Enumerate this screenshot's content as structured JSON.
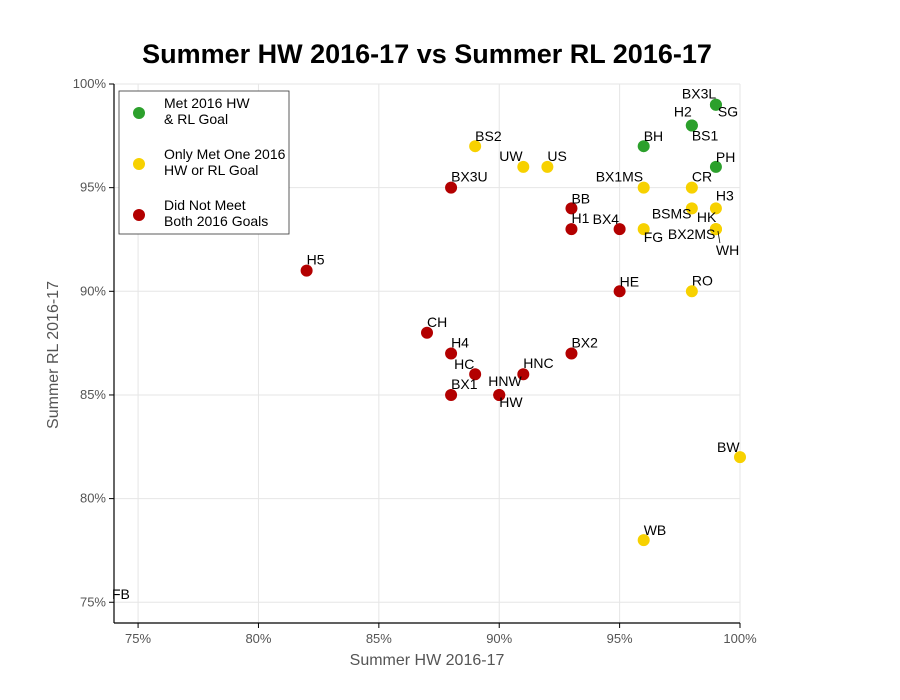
{
  "chart_data": {
    "type": "scatter",
    "title": "Summer HW 2016-17 vs Summer RL 2016-17",
    "xlabel": "Summer HW 2016-17",
    "ylabel": "Summer RL 2016-17",
    "xlim": [
      74,
      100
    ],
    "ylim": [
      74,
      100
    ],
    "x_ticks": [
      75,
      80,
      85,
      90,
      95,
      100
    ],
    "y_ticks": [
      75,
      80,
      85,
      90,
      95,
      100
    ],
    "x_tick_labels": [
      "75%",
      "80%",
      "85%",
      "90%",
      "95%",
      "100%"
    ],
    "y_tick_labels": [
      "75%",
      "80%",
      "85%",
      "90%",
      "95%",
      "100%"
    ],
    "grid": true,
    "legend_position": "top-left",
    "series": [
      {
        "name": "Met 2016 HW\n& RL Goal",
        "color": "#2ca02c",
        "points": [
          {
            "label": "BX3L",
            "x": 99,
            "y": 99
          },
          {
            "label": "SG",
            "x": 99,
            "y": 99
          },
          {
            "label": "H2",
            "x": 98,
            "y": 98
          },
          {
            "label": "BS1",
            "x": 98,
            "y": 98
          },
          {
            "label": "BH",
            "x": 96,
            "y": 97
          },
          {
            "label": "PH",
            "x": 99,
            "y": 96
          }
        ]
      },
      {
        "name": "Only Met One 2016\nHW or RL Goal",
        "color": "#f7d100",
        "points": [
          {
            "label": "BS2",
            "x": 89,
            "y": 97
          },
          {
            "label": "UW",
            "x": 91,
            "y": 96
          },
          {
            "label": "US",
            "x": 92,
            "y": 96
          },
          {
            "label": "BX1MS",
            "x": 96,
            "y": 95
          },
          {
            "label": "CR",
            "x": 98,
            "y": 95
          },
          {
            "label": "BSMS",
            "x": 98,
            "y": 94
          },
          {
            "label": "H3",
            "x": 99,
            "y": 94
          },
          {
            "label": "HK",
            "x": 99,
            "y": 93
          },
          {
            "label": "FG",
            "x": 96,
            "y": 93
          },
          {
            "label": "BX2MS",
            "x": 99,
            "y": 93
          },
          {
            "label": "WH",
            "x": 99,
            "y": 93
          },
          {
            "label": "RO",
            "x": 98,
            "y": 90
          },
          {
            "label": "BW",
            "x": 100,
            "y": 82
          },
          {
            "label": "WB",
            "x": 96,
            "y": 78
          }
        ]
      },
      {
        "name": "Did Not Meet\nBoth 2016 Goals",
        "color": "#b30000",
        "points": [
          {
            "label": "BX3U",
            "x": 88,
            "y": 95
          },
          {
            "label": "BB",
            "x": 93,
            "y": 94
          },
          {
            "label": "H1",
            "x": 93,
            "y": 93
          },
          {
            "label": "BX4",
            "x": 95,
            "y": 93
          },
          {
            "label": "H5",
            "x": 82,
            "y": 91
          },
          {
            "label": "HE",
            "x": 95,
            "y": 90
          },
          {
            "label": "CH",
            "x": 87,
            "y": 88
          },
          {
            "label": "H4",
            "x": 88,
            "y": 87
          },
          {
            "label": "BX2",
            "x": 93,
            "y": 87
          },
          {
            "label": "HC",
            "x": 89,
            "y": 86
          },
          {
            "label": "HNC",
            "x": 91,
            "y": 86
          },
          {
            "label": "HNW",
            "x": 90,
            "y": 85
          },
          {
            "label": "HW",
            "x": 90,
            "y": 85
          },
          {
            "label": "BX1",
            "x": 88,
            "y": 85
          }
        ]
      }
    ],
    "unplotted_labels": [
      "FB"
    ]
  }
}
